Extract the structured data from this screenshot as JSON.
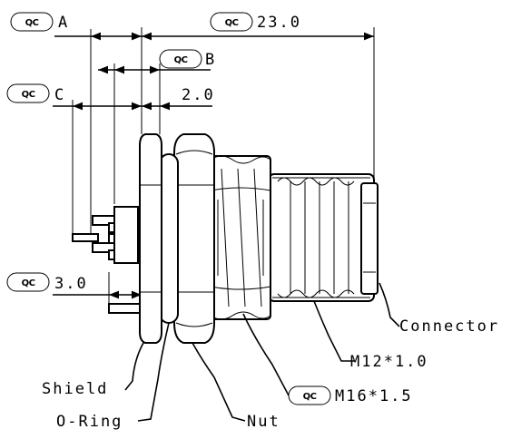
{
  "qc_badge": "QC",
  "dimensions": {
    "a": "A",
    "overall": "23.0",
    "b": "B",
    "c": "C",
    "gap": "2.0",
    "pin": "3.0"
  },
  "callouts": {
    "connector": "Connector",
    "m12": "M12*1.0",
    "m16": "M16*1.5",
    "shield": "Shield",
    "o_ring": "O-Ring",
    "nut": "Nut"
  }
}
